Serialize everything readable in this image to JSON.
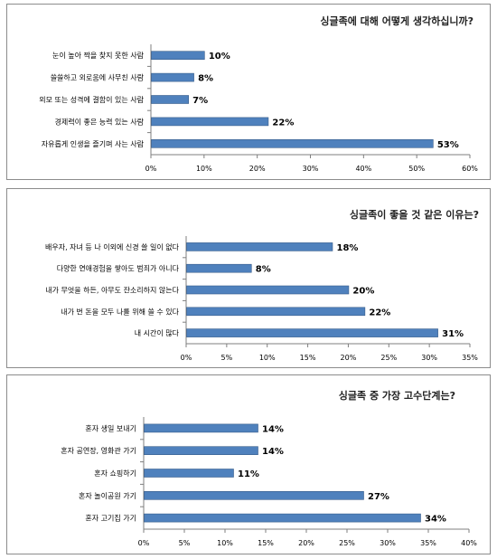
{
  "colors": {
    "bar": "#4f81bd",
    "bar_edge": "#385d8a",
    "axis": "#7f7f7f",
    "text": "#000000"
  },
  "chart_data": [
    {
      "type": "bar",
      "orientation": "horizontal",
      "title": "싱글족에 대해 어떻게 생각하십니까?",
      "categories": [
        "눈이 높아 짝을 찾지 못한 사람",
        "쓸쓸하고 외로움에 사무친 사람",
        "외모 또는 성격에 결함이 있는 사람",
        "경제력이 좋은 능력 있는 사람",
        "자유롭게 인생을 즐기며 사는 사람"
      ],
      "values": [
        10,
        8,
        7,
        22,
        53
      ],
      "value_labels": [
        "10%",
        "8%",
        "7%",
        "22%",
        "53%"
      ],
      "xlim": [
        0,
        60
      ],
      "ticks": [
        "0%",
        "10%",
        "20%",
        "30%",
        "40%",
        "50%",
        "60%"
      ],
      "grid": false
    },
    {
      "type": "bar",
      "orientation": "horizontal",
      "title": "싱글족이 좋을 것 같은 이유는?",
      "categories": [
        "배우자, 자녀 등 나 이외에 신경 쓸 일이 없다",
        "다양한 연애경험을 쌓아도 범죄가 아니다",
        "내가 무엇을 하든, 아무도 잔소리하지 않는다",
        "내가 번 돈을 모두 나를 위해 쓸 수 있다",
        "내 시간이 많다"
      ],
      "values": [
        18,
        8,
        20,
        22,
        31
      ],
      "value_labels": [
        "18%",
        "8%",
        "20%",
        "22%",
        "31%"
      ],
      "xlim": [
        0,
        35
      ],
      "ticks": [
        "0%",
        "5%",
        "10%",
        "15%",
        "20%",
        "25%",
        "30%",
        "35%"
      ],
      "grid": false
    },
    {
      "type": "bar",
      "orientation": "horizontal",
      "title": "싱글족 중 가장 고수단계는?",
      "categories": [
        "혼자 생일 보내기",
        "혼자 공연장, 영화관 가기",
        "혼자 쇼핑하기",
        "혼자 놀이공원 가기",
        "혼자 고기집 가기"
      ],
      "values": [
        14,
        14,
        11,
        27,
        34
      ],
      "value_labels": [
        "14%",
        "14%",
        "11%",
        "27%",
        "34%"
      ],
      "xlim": [
        0,
        40
      ],
      "ticks": [
        "0%",
        "5%",
        "10%",
        "15%",
        "20%",
        "25%",
        "30%",
        "35%",
        "40%"
      ],
      "grid": false
    }
  ]
}
